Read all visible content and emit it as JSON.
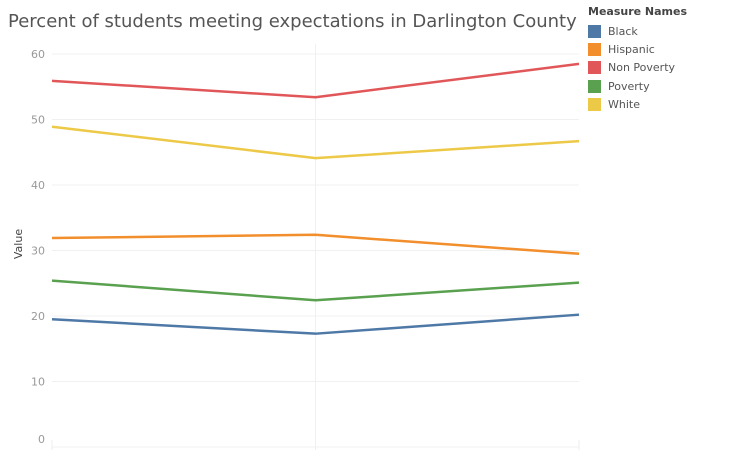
{
  "chart_data": {
    "type": "line",
    "title": "Percent of students meeting expectations in Darlington County",
    "xlabel": "",
    "ylabel": "Value",
    "ylim": [
      0,
      60
    ],
    "yticks": [
      "0",
      "10",
      "20",
      "30",
      "40",
      "50",
      "60"
    ],
    "x": [
      1,
      2,
      3
    ],
    "grid": true,
    "legend_title": "Measure Names",
    "legend_placement": "top-right",
    "series": [
      {
        "name": "Black",
        "color": "#4e79a7",
        "values": [
          19.5,
          17.3,
          20.2
        ]
      },
      {
        "name": "Hispanic",
        "color": "#f28e2b",
        "values": [
          31.9,
          32.4,
          29.5
        ]
      },
      {
        "name": "Non Poverty",
        "color": "#e15759",
        "values": [
          55.9,
          53.4,
          58.5
        ]
      },
      {
        "name": "Poverty",
        "color": "#59a14f",
        "values": [
          25.4,
          22.4,
          25.1
        ]
      },
      {
        "name": "White",
        "color": "#edc948",
        "values": [
          48.9,
          44.1,
          46.7
        ]
      }
    ]
  }
}
